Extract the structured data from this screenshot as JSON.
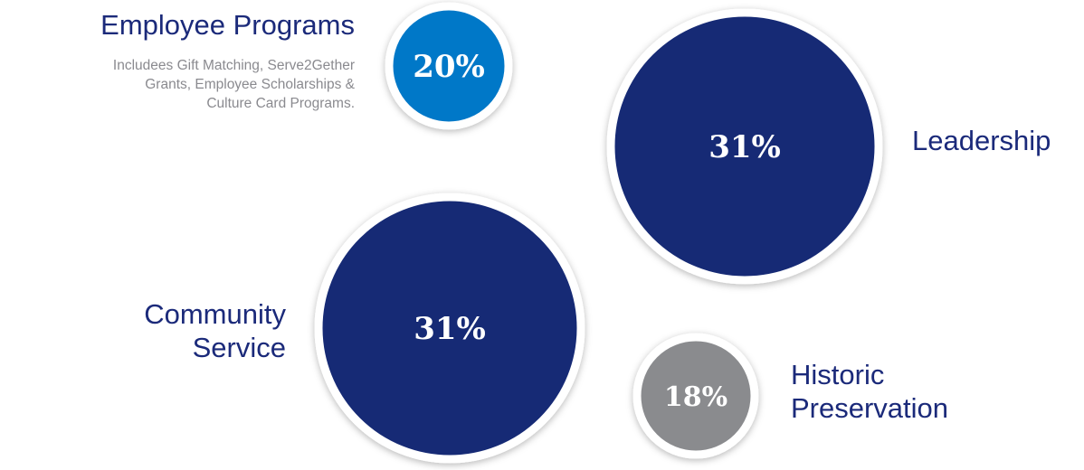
{
  "chart_data": {
    "type": "bubble",
    "title": "",
    "categories": [
      "Employee Programs",
      "Leadership",
      "Community Service",
      "Historic Preservation"
    ],
    "values": [
      20,
      31,
      31,
      18
    ],
    "value_labels": [
      "20%",
      "31%",
      "31%",
      "18%"
    ],
    "unit": "%",
    "bubbles": [
      {
        "name": "Employee Programs",
        "label_lines": [
          "Employee Programs"
        ],
        "value": 20,
        "value_label": "20%",
        "color": "#0078c8",
        "description_lines": [
          "Includees Gift Matching, Serve2Gether",
          "Grants, Employee Scholarships &",
          "Culture Card Programs."
        ]
      },
      {
        "name": "Leadership",
        "label_lines": [
          "Leadership"
        ],
        "value": 31,
        "value_label": "31%",
        "color": "#142975",
        "description_lines": []
      },
      {
        "name": "Community Service",
        "label_lines": [
          "Community",
          "Service"
        ],
        "value": 31,
        "value_label": "31%",
        "color": "#142975",
        "description_lines": []
      },
      {
        "name": "Historic Preservation",
        "label_lines": [
          "Historic",
          "Preservation"
        ],
        "value": 18,
        "value_label": "18%",
        "color": "#8a8b8e",
        "description_lines": []
      }
    ],
    "grid": false,
    "legend": "none"
  }
}
